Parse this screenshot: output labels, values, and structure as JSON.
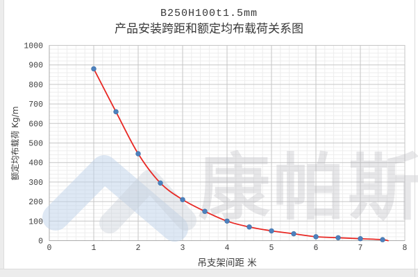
{
  "title": {
    "line1": "B250H100t1.5mm",
    "line2": "产品安装跨距和额定均布载荷关系图"
  },
  "watermark": {
    "text": "康帕斯"
  },
  "chart_data": {
    "type": "scatter",
    "series": [
      {
        "name": "额定均布载荷",
        "x": [
          1,
          1.5,
          2,
          2.5,
          3,
          3.5,
          4,
          4.5,
          5,
          5.5,
          6,
          6.5,
          7,
          7.5
        ],
        "values": [
          880,
          660,
          445,
          295,
          210,
          150,
          100,
          70,
          50,
          35,
          20,
          15,
          10,
          5
        ]
      }
    ],
    "trendline": {
      "style": "smooth-exponential-fit",
      "color": "#e82824"
    },
    "xlabel": "吊支架间距  米",
    "ylabel": "额定均布载荷 Kg/m",
    "xlim": [
      0,
      8
    ],
    "ylim": [
      0,
      1000
    ],
    "x_ticks": [
      0,
      1,
      2,
      3,
      4,
      5,
      6,
      7,
      8
    ],
    "y_ticks": [
      0,
      100,
      200,
      300,
      400,
      500,
      600,
      700,
      800,
      900,
      1000
    ],
    "x_minor_step": 0.2,
    "y_minor_step": 20,
    "grid": true,
    "legend": "none",
    "colors": {
      "point": "#4d81bd",
      "point_edge": "#3e6fa6",
      "trend": "#e82824",
      "major_grid": "#c6c6c6",
      "minor_grid": "#ededed",
      "axis": "#ababab",
      "tick_text": "#3d3d3d",
      "title_text": "#373737"
    }
  }
}
